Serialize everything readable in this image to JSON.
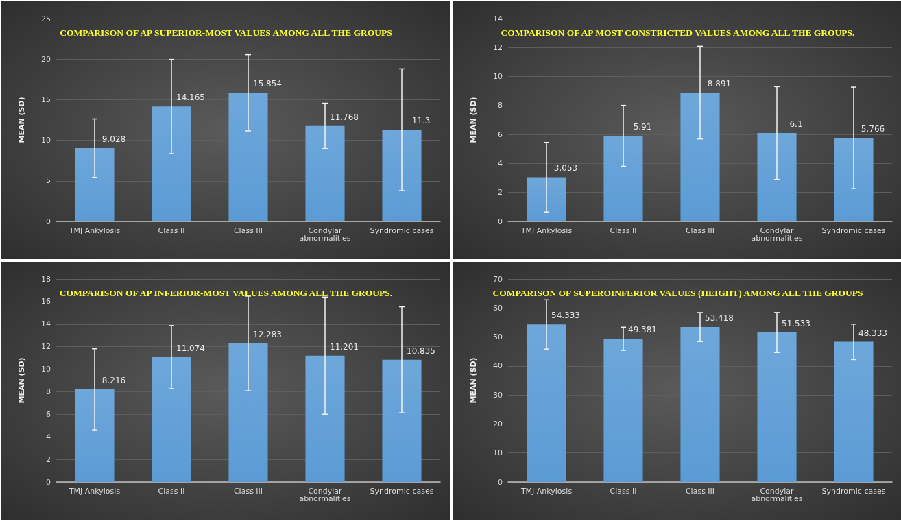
{
  "chart_data": [
    {
      "type": "bar",
      "title": "COMPARISON OF AP SUPERIOR-MOST VALUES AMONG ALL THE GROUPS",
      "ylabel": "MEAN (SD)",
      "categories": [
        "TMJ Ankylosis",
        "Class II",
        "Class III",
        "Condylar abnormalities",
        "Syndromic cases"
      ],
      "values": [
        9.028,
        14.165,
        15.854,
        11.768,
        11.3
      ],
      "errors": [
        3.6,
        5.8,
        4.7,
        2.8,
        7.5
      ],
      "color": "#5b9bd5",
      "ylim": [
        0,
        25
      ],
      "yticks": [
        0,
        5,
        10,
        15,
        20,
        25
      ],
      "grid": "y",
      "data_labels": true
    },
    {
      "type": "bar",
      "title": "COMPARISON OF AP MOST CONSTRICTED VALUES AMONG ALL THE GROUPS.",
      "ylabel": "MEAN (SD)",
      "categories": [
        "TMJ Ankylosis",
        "Class II",
        "Class III",
        "Condylar abnormalities",
        "Syndromic cases"
      ],
      "values": [
        3.053,
        5.91,
        8.891,
        6.1,
        5.766
      ],
      "errors": [
        2.4,
        2.1,
        3.2,
        3.2,
        3.5
      ],
      "color": "#5b9bd5",
      "ylim": [
        0,
        14
      ],
      "yticks": [
        0,
        2,
        4,
        6,
        8,
        10,
        12,
        14
      ],
      "grid": "y",
      "data_labels": true
    },
    {
      "type": "bar",
      "title": "COMPARISON OF AP INFERIOR-MOST VALUES AMONG ALL THE GROUPS.",
      "ylabel": "MEAN (SD)",
      "categories": [
        "TMJ Ankylosis",
        "Class II",
        "Class III",
        "Condylar abnormalities",
        "Syndromic cases"
      ],
      "values": [
        8.216,
        11.074,
        12.283,
        11.201,
        10.835
      ],
      "errors": [
        3.6,
        2.8,
        4.2,
        5.2,
        4.7
      ],
      "color": "#5b9bd5",
      "ylim": [
        0,
        18
      ],
      "yticks": [
        0,
        2,
        4,
        6,
        8,
        10,
        12,
        14,
        16,
        18
      ],
      "grid": "y",
      "data_labels": true
    },
    {
      "type": "bar",
      "title": "COMPARISON OF SUPEROINFERIOR VALUES (HEIGHT) AMONG ALL THE GROUPS",
      "ylabel": "MEAN (SD)",
      "categories": [
        "TMJ Ankylosis",
        "Class II",
        "Class III",
        "Condylar abnormalities",
        "Syndromic cases"
      ],
      "values": [
        54.333,
        49.381,
        53.418,
        51.533,
        48.333
      ],
      "errors": [
        8.5,
        4.0,
        5.0,
        6.9,
        6.1
      ],
      "color": "#5b9bd5",
      "ylim": [
        0,
        70
      ],
      "yticks": [
        0,
        10,
        20,
        30,
        40,
        50,
        60,
        70
      ],
      "grid": "y",
      "data_labels": true
    }
  ]
}
